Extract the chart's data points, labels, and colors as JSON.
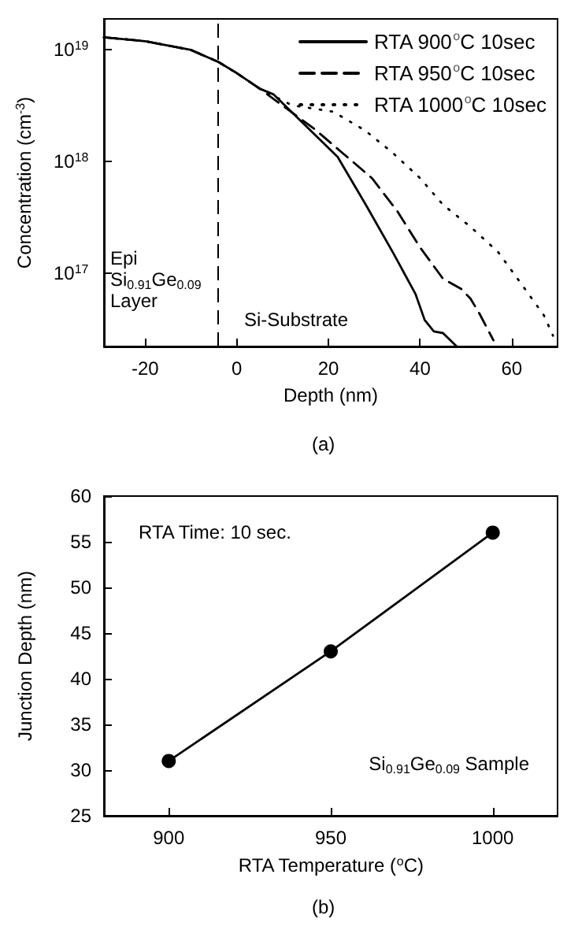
{
  "chart_data": [
    {
      "type": "line",
      "xlabel": "Depth (nm)",
      "ylabel": "Concentration (cm$^{-3}$)",
      "log": "y",
      "legend": "top right",
      "grid": false,
      "xlim": [
        -29,
        70
      ],
      "xticks": [
        -20,
        0,
        20,
        40,
        60
      ],
      "ylim": [
        2.2e+16,
        1.9e+19
      ],
      "yticks": [
        {
          "value": 1e+17,
          "label": "10$^{17}$"
        },
        {
          "value": 1e+18,
          "label": "10$^{18}$"
        },
        {
          "value": 1e+19,
          "label": "10$^{19}$"
        }
      ],
      "ref_lines": [
        {
          "axis": "x",
          "value": -4,
          "line_style": "dashed",
          "color": "#000000"
        }
      ],
      "annotations": [
        "Epi\nSi$_{0.91}$Ge$_{0.09}$\nLayer",
        "Si-Substrate",
        "(a)"
      ],
      "series": [
        {
          "name": "RTA 900$^{o}$C 10sec",
          "color": "#000000",
          "line_style": "solid",
          "x": [
            -29,
            -20,
            -10,
            -4,
            0,
            5,
            8,
            15,
            22,
            28,
            34,
            39,
            41,
            43,
            45,
            48
          ],
          "values": [
            1.3e+19,
            1.2e+19,
            1e+19,
            7.8e+18,
            6.2e+18,
            4.5e+18,
            4e+18,
            2.1e+18,
            1.1e+18,
            4.2e+17,
            1.55e+17,
            6.5e+16,
            3.8e+16,
            3e+16,
            2.9e+16,
            2.2e+16
          ]
        },
        {
          "name": "RTA 950$^{o}$C 10sec",
          "color": "#000000",
          "line_style": "dashed",
          "x": [
            -29,
            -20,
            -10,
            -4,
            0,
            5,
            9,
            17,
            23,
            29.5,
            35,
            40,
            45,
            49,
            51,
            53,
            56
          ],
          "values": [
            1.3e+19,
            1.2e+19,
            1e+19,
            7.8e+18,
            6.2e+18,
            4.5e+18,
            3.4e+18,
            1.95e+18,
            1.2e+18,
            7.1e+17,
            3.6e+17,
            1.7e+17,
            8.9e+16,
            7.2e+16,
            5.9e+16,
            4.3e+16,
            2.5e+16
          ]
        },
        {
          "name": "RTA 1000$^{o}$C 10sec",
          "color": "#000000",
          "line_style": "dotted",
          "x": [
            -29,
            -20,
            -10,
            -4,
            0,
            5,
            12,
            21,
            28,
            34,
            40,
            45,
            51,
            57,
            62,
            67,
            69
          ],
          "values": [
            1.3e+19,
            1.2e+19,
            1e+19,
            7.8e+18,
            6.2e+18,
            4.5e+18,
            3.2e+18,
            2.8e+18,
            1.9e+18,
            1.2e+18,
            7.1e+17,
            4.1e+17,
            2.6e+17,
            1.55e+17,
            8.1e+16,
            4.2e+16,
            2.75e+16
          ]
        }
      ]
    },
    {
      "type": "line",
      "xlabel": "RTA Temperature ($^{o}$C)",
      "ylabel": "Junction Depth (nm)",
      "grid": false,
      "marker": "circle",
      "xlim": [
        880,
        1020
      ],
      "xticks": [
        900,
        950,
        1000
      ],
      "ylim": [
        25,
        60
      ],
      "yticks": [
        25,
        30,
        35,
        40,
        45,
        50,
        55,
        60
      ],
      "annotations": [
        "RTA Time: 10 sec.",
        "Si$_{0.91}$Ge$_{0.09}$ Sample",
        "(b)"
      ],
      "series": [
        {
          "color": "#000000",
          "line_style": "solid",
          "x": [
            900,
            950,
            1000
          ],
          "values": [
            31,
            43,
            56
          ]
        }
      ]
    }
  ]
}
